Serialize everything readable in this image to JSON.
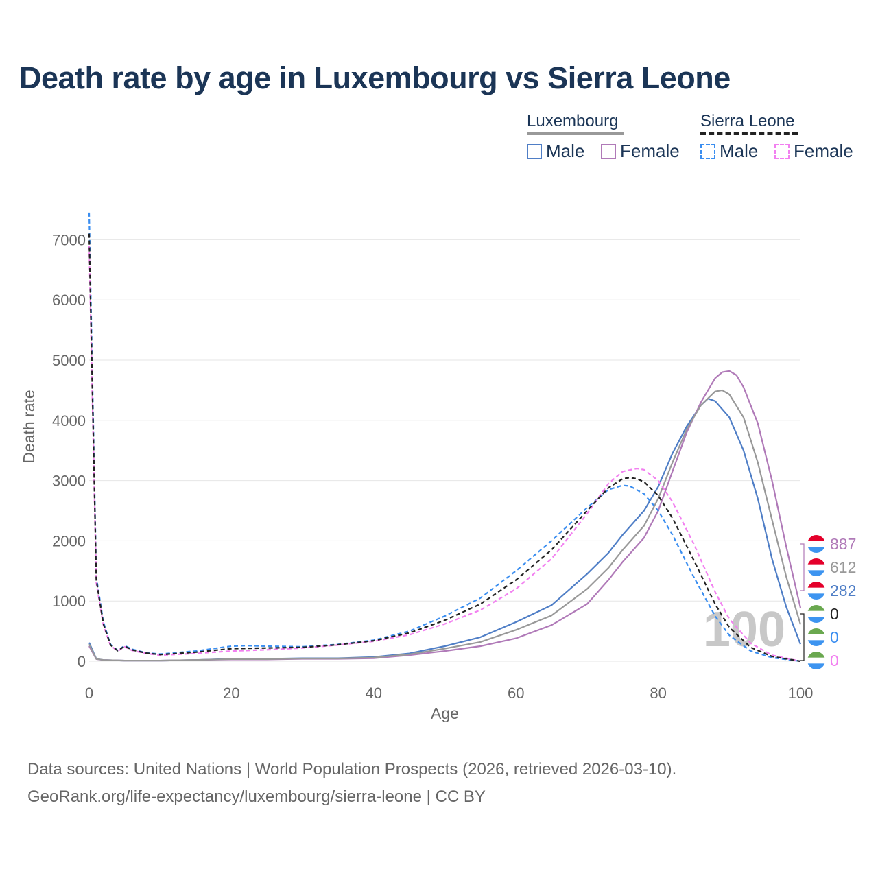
{
  "title": "Death rate by age in Luxembourg vs Sierra Leone",
  "legend": {
    "groups": [
      {
        "name": "Luxembourg",
        "line_style": "solid",
        "line_color": "#999999",
        "items": [
          {
            "label": "Male",
            "color": "#4f7ec6",
            "style": "solid"
          },
          {
            "label": "Female",
            "color": "#b07ab8",
            "style": "solid"
          }
        ]
      },
      {
        "name": "Sierra Leone",
        "line_style": "dashed",
        "line_color": "#222222",
        "items": [
          {
            "label": "Male",
            "color": "#3b8ef0",
            "style": "dashed"
          },
          {
            "label": "Female",
            "color": "#f280f0",
            "style": "dashed"
          }
        ]
      }
    ]
  },
  "age_watermark": "100",
  "sources": {
    "line1": "Data sources: United Nations | World Population Prospects (2026, retrieved 2026-03-10).",
    "line2": "GeoRank.org/life-expectancy/luxembourg/sierra-leone | CC BY"
  },
  "chart_data": {
    "type": "line",
    "title": "Death rate by age in Luxembourg vs Sierra Leone",
    "xlabel": "Age",
    "ylabel": "Death rate",
    "xlim": [
      0,
      100
    ],
    "ylim": [
      0,
      7400
    ],
    "xticks": [
      0,
      20,
      40,
      60,
      80,
      100
    ],
    "yticks": [
      0,
      1000,
      2000,
      3000,
      4000,
      5000,
      6000,
      7000
    ],
    "grid": true,
    "series": [
      {
        "name": "Luxembourg Male",
        "country": "Luxembourg",
        "sex": "Male",
        "color": "#4f7ec6",
        "dash": "solid",
        "points": [
          [
            0,
            310
          ],
          [
            1,
            40
          ],
          [
            2,
            20
          ],
          [
            5,
            10
          ],
          [
            10,
            10
          ],
          [
            15,
            20
          ],
          [
            20,
            40
          ],
          [
            25,
            40
          ],
          [
            30,
            50
          ],
          [
            35,
            50
          ],
          [
            40,
            70
          ],
          [
            45,
            130
          ],
          [
            50,
            250
          ],
          [
            55,
            400
          ],
          [
            60,
            650
          ],
          [
            65,
            930
          ],
          [
            70,
            1450
          ],
          [
            73,
            1800
          ],
          [
            75,
            2100
          ],
          [
            78,
            2500
          ],
          [
            80,
            2900
          ],
          [
            82,
            3450
          ],
          [
            84,
            3900
          ],
          [
            86,
            4250
          ],
          [
            87,
            4360
          ],
          [
            88,
            4320
          ],
          [
            90,
            4050
          ],
          [
            92,
            3500
          ],
          [
            94,
            2700
          ],
          [
            96,
            1700
          ],
          [
            98,
            900
          ],
          [
            100,
            282
          ]
        ],
        "end_value": "282"
      },
      {
        "name": "Luxembourg Female",
        "country": "Luxembourg",
        "sex": "Female",
        "color": "#b07ab8",
        "dash": "solid",
        "points": [
          [
            0,
            250
          ],
          [
            1,
            35
          ],
          [
            2,
            20
          ],
          [
            5,
            10
          ],
          [
            10,
            10
          ],
          [
            15,
            20
          ],
          [
            20,
            30
          ],
          [
            25,
            30
          ],
          [
            30,
            40
          ],
          [
            35,
            40
          ],
          [
            40,
            50
          ],
          [
            45,
            100
          ],
          [
            50,
            170
          ],
          [
            55,
            250
          ],
          [
            60,
            380
          ],
          [
            65,
            600
          ],
          [
            70,
            950
          ],
          [
            73,
            1350
          ],
          [
            75,
            1650
          ],
          [
            78,
            2050
          ],
          [
            80,
            2500
          ],
          [
            82,
            3150
          ],
          [
            84,
            3800
          ],
          [
            86,
            4300
          ],
          [
            88,
            4700
          ],
          [
            89,
            4800
          ],
          [
            90,
            4820
          ],
          [
            91,
            4750
          ],
          [
            92,
            4550
          ],
          [
            94,
            3950
          ],
          [
            96,
            3000
          ],
          [
            98,
            1900
          ],
          [
            100,
            887
          ]
        ],
        "end_value": "887"
      },
      {
        "name": "Luxembourg Total",
        "country": "Luxembourg",
        "sex": "Total",
        "color": "#999999",
        "dash": "solid",
        "points": [
          [
            0,
            280
          ],
          [
            1,
            38
          ],
          [
            2,
            20
          ],
          [
            5,
            10
          ],
          [
            10,
            10
          ],
          [
            15,
            20
          ],
          [
            20,
            35
          ],
          [
            25,
            35
          ],
          [
            30,
            45
          ],
          [
            35,
            45
          ],
          [
            40,
            60
          ],
          [
            45,
            115
          ],
          [
            50,
            210
          ],
          [
            55,
            320
          ],
          [
            60,
            520
          ],
          [
            65,
            760
          ],
          [
            70,
            1200
          ],
          [
            73,
            1550
          ],
          [
            75,
            1850
          ],
          [
            78,
            2250
          ],
          [
            80,
            2700
          ],
          [
            82,
            3300
          ],
          [
            84,
            3850
          ],
          [
            86,
            4250
          ],
          [
            88,
            4480
          ],
          [
            89,
            4500
          ],
          [
            90,
            4430
          ],
          [
            92,
            4050
          ],
          [
            94,
            3300
          ],
          [
            96,
            2350
          ],
          [
            98,
            1400
          ],
          [
            100,
            612
          ]
        ],
        "end_value": "612"
      },
      {
        "name": "Sierra Leone Male",
        "country": "Sierra Leone",
        "sex": "Male",
        "color": "#3b8ef0",
        "dash": "dashed",
        "points": [
          [
            0,
            7450
          ],
          [
            1,
            1400
          ],
          [
            2,
            650
          ],
          [
            3,
            280
          ],
          [
            4,
            180
          ],
          [
            5,
            260
          ],
          [
            6,
            200
          ],
          [
            8,
            140
          ],
          [
            10,
            120
          ],
          [
            15,
            170
          ],
          [
            20,
            250
          ],
          [
            22,
            260
          ],
          [
            25,
            250
          ],
          [
            30,
            240
          ],
          [
            35,
            280
          ],
          [
            40,
            350
          ],
          [
            45,
            500
          ],
          [
            50,
            750
          ],
          [
            55,
            1050
          ],
          [
            60,
            1500
          ],
          [
            65,
            2000
          ],
          [
            70,
            2550
          ],
          [
            73,
            2850
          ],
          [
            75,
            2920
          ],
          [
            76,
            2910
          ],
          [
            78,
            2780
          ],
          [
            80,
            2500
          ],
          [
            82,
            2100
          ],
          [
            85,
            1400
          ],
          [
            88,
            750
          ],
          [
            90,
            430
          ],
          [
            93,
            170
          ],
          [
            96,
            60
          ],
          [
            100,
            0
          ]
        ],
        "end_value": "0"
      },
      {
        "name": "Sierra Leone Female",
        "country": "Sierra Leone",
        "sex": "Female",
        "color": "#f280f0",
        "dash": "dashed",
        "points": [
          [
            0,
            6900
          ],
          [
            1,
            1300
          ],
          [
            2,
            600
          ],
          [
            3,
            260
          ],
          [
            4,
            170
          ],
          [
            5,
            240
          ],
          [
            6,
            180
          ],
          [
            8,
            130
          ],
          [
            10,
            100
          ],
          [
            15,
            130
          ],
          [
            20,
            170
          ],
          [
            25,
            190
          ],
          [
            30,
            220
          ],
          [
            35,
            270
          ],
          [
            40,
            330
          ],
          [
            45,
            440
          ],
          [
            50,
            620
          ],
          [
            55,
            850
          ],
          [
            60,
            1200
          ],
          [
            65,
            1700
          ],
          [
            70,
            2450
          ],
          [
            73,
            2950
          ],
          [
            75,
            3150
          ],
          [
            77,
            3200
          ],
          [
            78,
            3180
          ],
          [
            80,
            3000
          ],
          [
            82,
            2650
          ],
          [
            85,
            1950
          ],
          [
            88,
            1150
          ],
          [
            90,
            700
          ],
          [
            93,
            300
          ],
          [
            96,
            100
          ],
          [
            100,
            0
          ]
        ],
        "end_value": "0"
      },
      {
        "name": "Sierra Leone Total",
        "country": "Sierra Leone",
        "sex": "Total",
        "color": "#222222",
        "dash": "dashed",
        "points": [
          [
            0,
            7100
          ],
          [
            1,
            1350
          ],
          [
            2,
            620
          ],
          [
            3,
            270
          ],
          [
            4,
            175
          ],
          [
            5,
            250
          ],
          [
            6,
            190
          ],
          [
            8,
            135
          ],
          [
            10,
            110
          ],
          [
            15,
            150
          ],
          [
            20,
            210
          ],
          [
            25,
            220
          ],
          [
            30,
            230
          ],
          [
            35,
            275
          ],
          [
            40,
            340
          ],
          [
            45,
            470
          ],
          [
            50,
            680
          ],
          [
            55,
            950
          ],
          [
            60,
            1350
          ],
          [
            65,
            1850
          ],
          [
            70,
            2500
          ],
          [
            73,
            2880
          ],
          [
            75,
            3030
          ],
          [
            76,
            3050
          ],
          [
            77,
            3030
          ],
          [
            78,
            2980
          ],
          [
            80,
            2750
          ],
          [
            82,
            2380
          ],
          [
            85,
            1680
          ],
          [
            88,
            950
          ],
          [
            90,
            560
          ],
          [
            93,
            230
          ],
          [
            96,
            80
          ],
          [
            100,
            0
          ]
        ],
        "end_value": "0"
      }
    ],
    "end_labels": [
      {
        "value": "887",
        "color": "#b07ab8",
        "flag": "Luxembourg"
      },
      {
        "value": "612",
        "color": "#999999",
        "flag": "Luxembourg"
      },
      {
        "value": "282",
        "color": "#4f7ec6",
        "flag": "Luxembourg"
      },
      {
        "value": "0",
        "color": "#222222",
        "flag": "Sierra Leone"
      },
      {
        "value": "0",
        "color": "#3b8ef0",
        "flag": "Sierra Leone"
      },
      {
        "value": "0",
        "color": "#f280f0",
        "flag": "Sierra Leone"
      }
    ]
  }
}
